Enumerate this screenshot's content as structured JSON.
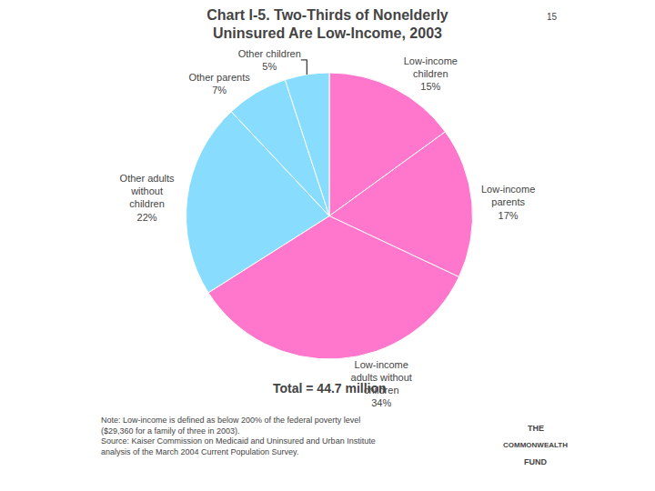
{
  "chart_data": {
    "type": "pie",
    "title": "Chart I-5. Two-Thirds of Nonelderly\nUninsured Are Low-Income, 2003",
    "categories": [
      "Low-income\nchildren\n15%",
      "Low-income\nparents\n17%",
      "Low-income\nadults without\nchildren\n34%",
      "Other adults\nwithout\nchildren\n22%",
      "Other parents\n7%",
      "Other children\n5%"
    ],
    "values": [
      15,
      17,
      34,
      22,
      7,
      5
    ],
    "colors": [
      "#FF77CC",
      "#FF77CC",
      "#FF77CC",
      "#88DDFF",
      "#88DDFF",
      "#88DDFF"
    ],
    "annotations": [
      "15",
      "Total = 44.7 million",
      "Note: Low-income is defined as below 200% of the federal poverty level\n($29,360 for a family of three in 2003).\nSource: Kaiser Commission on Medicaid and Uninsured and Urban Institute\nanalysis of the March 2004 Current Population Survey.",
      "THE",
      "COMMONWEALTH",
      "FUND"
    ]
  }
}
